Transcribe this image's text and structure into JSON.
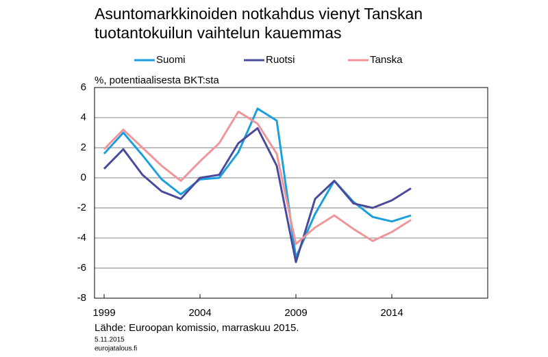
{
  "chart_data": {
    "type": "line",
    "title": [
      "Asuntomarkkinoiden notkahdus vienyt Tanskan",
      "tuotantokuilun vaihtelun kauemmas"
    ],
    "y_label": "%, potentiaalisesta BKT:sta",
    "source": "Lähde: Euroopan komissio, marraskuu 2015.",
    "date": "5.11.2015",
    "site": "eurojatalous.fi",
    "x": [
      1999,
      2000,
      2001,
      2002,
      2003,
      2004,
      2005,
      2006,
      2007,
      2008,
      2009,
      2010,
      2011,
      2012,
      2013,
      2014,
      2015
    ],
    "series": [
      {
        "name": "Suomi",
        "color": "#1a9fde",
        "values": [
          1.6,
          3.0,
          1.5,
          -0.1,
          -1.1,
          -0.1,
          0.0,
          1.7,
          4.6,
          3.8,
          -5.3,
          -2.4,
          -0.2,
          -1.6,
          -2.6,
          -2.9,
          -2.5
        ]
      },
      {
        "name": "Ruotsi",
        "color": "#4a4a9c",
        "values": [
          0.6,
          1.9,
          0.2,
          -0.9,
          -1.4,
          0.0,
          0.2,
          2.3,
          3.3,
          0.8,
          -5.6,
          -1.4,
          -0.2,
          -1.7,
          -2.0,
          -1.5,
          -0.7
        ]
      },
      {
        "name": "Tanska",
        "color": "#f0959a",
        "values": [
          1.9,
          3.2,
          2.0,
          0.8,
          -0.2,
          1.1,
          2.3,
          4.4,
          3.6,
          1.6,
          -4.4,
          -3.3,
          -2.5,
          -3.4,
          -4.2,
          -3.6,
          -2.8
        ]
      }
    ],
    "xlim": [
      1998.5,
      2019
    ],
    "xticks": [
      1999,
      2004,
      2009,
      2014
    ],
    "ylim": [
      -8,
      6
    ],
    "yticks": [
      -8,
      -6,
      -4,
      -2,
      0,
      2,
      4,
      6
    ],
    "grid": true,
    "legend": "top"
  }
}
